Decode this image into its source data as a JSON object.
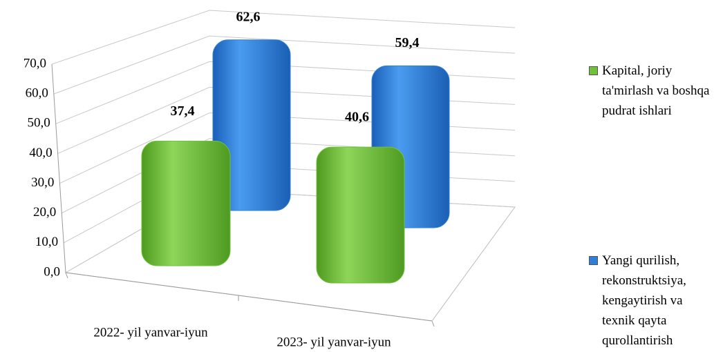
{
  "chart_data": {
    "type": "bar3d",
    "categories": [
      "2022- yil yanvar-iyun",
      "2023- yil yanvar-iyun"
    ],
    "series": [
      {
        "name": "Kapital, joriy ta'mirlash va boshqa pudrat ishlari",
        "color": "#6fc13a",
        "values": [
          37.4,
          40.6
        ],
        "value_labels": [
          "37,4",
          "40,6"
        ]
      },
      {
        "name": "Yangi qurilish, rekonstruktsiya, kengaytirish va texnik qayta qurollantirish",
        "color": "#2f7fd8",
        "values": [
          62.6,
          59.4
        ],
        "value_labels": [
          "62,6",
          "59,4"
        ]
      }
    ],
    "ylim": [
      0,
      70
    ],
    "yticks": [
      {
        "value": 0,
        "label": "0,0"
      },
      {
        "value": 10,
        "label": "10,0"
      },
      {
        "value": 20,
        "label": "20,0"
      },
      {
        "value": 30,
        "label": "30,0"
      },
      {
        "value": 40,
        "label": "40,0"
      },
      {
        "value": 50,
        "label": "50,0"
      },
      {
        "value": 60,
        "label": "60,0"
      },
      {
        "value": 70,
        "label": "70,0"
      }
    ],
    "grid": true
  }
}
